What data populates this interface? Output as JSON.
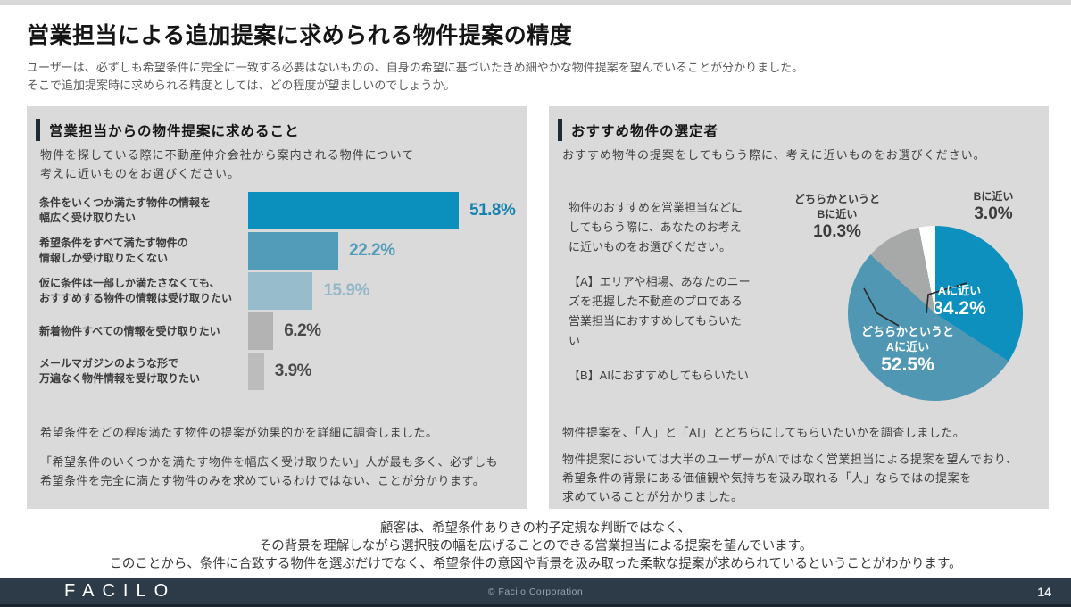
{
  "page": {
    "title": "営業担当による追加提案に求められる物件提案の精度",
    "subtitle": "ユーザーは、必ずしも希望条件に完全に一致する必要はないものの、自身の希望に基づいたきめ細やかな物件提案を望んでいることが分かりました。\nそこで追加提案時に求められる精度としては、どの程度が望ましいのでしょうか。"
  },
  "left_panel": {
    "heading": "営業担当からの物件提案に求めること",
    "description": "物件を探している際に不動産仲介会社から案内される物件について\n考えに近いものをお選びください。",
    "note1": "希望条件をどの程度満たす物件の提案が効果的かを詳細に調査しました。",
    "note2": "「希望条件のいくつかを満たす物件を幅広く受け取りたい」人が最も多く、必ずしも\n希望条件を完全に満たす物件のみを求めているわけではない、ことが分かります。"
  },
  "right_panel": {
    "heading": "おすすめ物件の選定者",
    "description": "おすすめ物件の提案をしてもらう際に、考えに近いものをお選びください。",
    "question": "物件のおすすめを営業担当などに\nしてもらう際に、あなたのお考え\nに近いものをお選びください。",
    "option_a": "【A】エリアや相場、あなたのニー\nズを把握した不動産のプロである\n営業担当におすすめしてもらいた\nい",
    "option_b": "【B】AIにおすすめしてもらいたい",
    "note1": "物件提案を、「人」と「AI」とどちらにしてもらいたいかを調査しました。",
    "note2": "物件提案においては大半のユーザーがAIではなく営業担当による提案を望んでおり、\n希望条件の背景にある価値観や気持ちを汲み取れる「人」ならではの提案を\n求めていることが分かりました。"
  },
  "chart_data": [
    {
      "type": "bar",
      "orientation": "horizontal",
      "title": "営業担当からの物件提案に求めること",
      "categories": [
        "条件をいくつか満たす物件の情報を\n幅広く受け取りたい",
        "希望条件をすべて満たす物件の\n情報しか受け取りたくない",
        "仮に条件は一部しか満たさなくても、\nおすすめする物件の情報は受け取りたい",
        "新着物件すべての情報を受け取りたい",
        "メールマガジンのような形で\n万遍なく物件情報を受け取りたい"
      ],
      "values": [
        51.8,
        22.2,
        15.9,
        6.2,
        3.9
      ],
      "value_labels": [
        "51.8%",
        "22.2%",
        "15.9%",
        "6.2%",
        "3.9%"
      ],
      "bar_colors": [
        "#0b90be",
        "#539cb9",
        "#97bccb",
        "#b3b3b3",
        "#bcbcbc"
      ],
      "value_colors": [
        "#1583b0",
        "#539cb9",
        "#94b8ca",
        "#4a4a4a",
        "#4a4a4a"
      ],
      "xlim": [
        0,
        55
      ],
      "grid": false
    },
    {
      "type": "pie",
      "title": "おすすめ物件の選定者",
      "start_angle_deg": 0,
      "direction": "clockwise",
      "slices": [
        {
          "label": "Aに近い",
          "value": 34.2,
          "display": "34.2%",
          "color": "#0e90bf",
          "label_position": "inside"
        },
        {
          "label": "どちらかというと\nAに近い",
          "value": 52.5,
          "display": "52.5%",
          "color": "#4f97b2",
          "label_position": "inside"
        },
        {
          "label": "どちらかというと\nBに近い",
          "value": 10.3,
          "display": "10.3%",
          "color": "#a7a9a8",
          "label_position": "outside"
        },
        {
          "label": "Bに近い",
          "value": 3.0,
          "display": "3.0%",
          "color": "#ffffff",
          "label_position": "outside"
        }
      ]
    }
  ],
  "conclusion": {
    "text": "顧客は、希望条件ありきの杓子定規な判断ではなく、\nその背景を理解しながら選択肢の幅を広げることのできる営業担当による提案を望んでいます。\nこのことから、条件に合致する物件を選ぶだけでなく、希望条件の意図や背景を汲み取った柔軟な提案が求められているということがわかります。"
  },
  "footer": {
    "logo": "FACILO",
    "copyright": "© Facilo Corporation",
    "page_number": "14"
  }
}
